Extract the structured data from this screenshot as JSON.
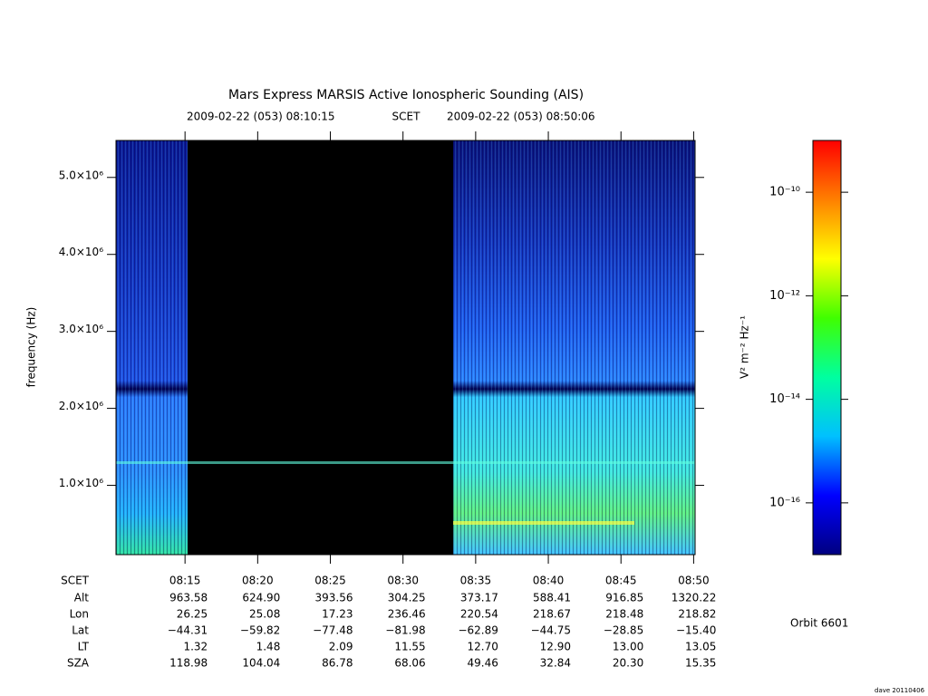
{
  "chart_data": {
    "type": "spectrogram",
    "title": "Mars Express MARSIS Active Ionospheric Sounding (AIS)",
    "start_time": "2009-02-22 (053) 08:10:15",
    "time_label": "SCET",
    "end_time": "2009-02-22 (053) 08:50:06",
    "ylabel": "frequency (Hz)",
    "xlim": [
      10.25,
      50.1
    ],
    "xticks": [
      {
        "value": 15,
        "label": "08:15"
      },
      {
        "value": 20,
        "label": "08:20"
      },
      {
        "value": 25,
        "label": "08:25"
      },
      {
        "value": 30,
        "label": "08:30"
      },
      {
        "value": 35,
        "label": "08:35"
      },
      {
        "value": 40,
        "label": "08:40"
      },
      {
        "value": 45,
        "label": "08:45"
      },
      {
        "value": 50,
        "label": "08:50"
      }
    ],
    "ylim": [
      100000,
      5480000
    ],
    "yticks": [
      {
        "value": 1000000,
        "label": "1.0×10⁶"
      },
      {
        "value": 2000000,
        "label": "2.0×10⁶"
      },
      {
        "value": 3000000,
        "label": "3.0×10⁶"
      },
      {
        "value": 4000000,
        "label": "4.0×10⁶"
      },
      {
        "value": 5000000,
        "label": "5.0×10⁶"
      }
    ],
    "colorbar": {
      "label": "V² m⁻² Hz⁻¹",
      "log_scale": true,
      "lim": [
        1e-17,
        1e-09
      ],
      "ticks": [
        {
          "value": 1e-16,
          "label": "10⁻¹⁶"
        },
        {
          "value": 1e-14,
          "label": "10⁻¹⁴"
        },
        {
          "value": 1e-12,
          "label": "10⁻¹²"
        },
        {
          "value": 1e-10,
          "label": "10⁻¹⁰"
        }
      ],
      "colormap": [
        "#000080",
        "#0000ff",
        "#00c0ff",
        "#00ffa0",
        "#40ff00",
        "#ffff00",
        "#ff8000",
        "#ff0000"
      ]
    },
    "table": {
      "row_labels": [
        "Alt",
        "Lon",
        "Lat",
        "LT",
        "SZA"
      ],
      "rows": [
        [
          "963.58",
          "624.90",
          "393.56",
          "304.25",
          "373.17",
          "588.41",
          "916.85",
          "1320.22"
        ],
        [
          "26.25",
          "25.08",
          "17.23",
          "236.46",
          "220.54",
          "218.67",
          "218.48",
          "218.82"
        ],
        [
          "−44.31",
          "−59.82",
          "−77.48",
          "−81.98",
          "−62.89",
          "−44.75",
          "−28.85",
          "−15.40"
        ],
        [
          "1.32",
          "1.48",
          "2.09",
          "11.55",
          "12.70",
          "12.90",
          "13.00",
          "13.05"
        ],
        [
          "118.98",
          "104.04",
          "86.78",
          "68.06",
          "49.46",
          "32.84",
          "20.30",
          "15.35"
        ]
      ]
    },
    "orbit": "Orbit 6601",
    "footer": "dave 20110406"
  }
}
